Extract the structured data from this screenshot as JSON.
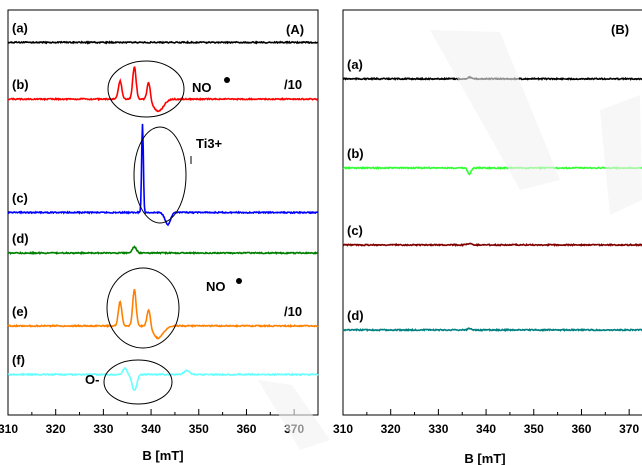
{
  "chart_data": [
    {
      "type": "line",
      "panel_label": "(A)",
      "xlabel": "B [mT]",
      "xlim": [
        310,
        375
      ],
      "xticks": [
        310,
        320,
        330,
        340,
        350,
        360,
        370
      ],
      "series": [
        {
          "name": "(a)",
          "color": "#000000",
          "baseline": 0.08,
          "annotation": "",
          "peaks": []
        },
        {
          "name": "(b)",
          "color": "#ff0000",
          "baseline": 0.22,
          "annotation": "/10",
          "peaks": [
            {
              "center": 333.5,
              "amp": 0.045,
              "width": 0.5
            },
            {
              "center": 336.5,
              "amp": 0.08,
              "width": 0.5
            },
            {
              "center": 339.5,
              "amp": 0.045,
              "width": 0.5
            },
            {
              "center": 341.5,
              "amp": -0.03,
              "width": 1.5
            }
          ]
        },
        {
          "name": "(c)",
          "color": "#0000ff",
          "baseline": 0.5,
          "annotation": "",
          "peaks": [
            {
              "center": 338.2,
              "amp": 0.22,
              "width": 0.25
            },
            {
              "center": 343.5,
              "amp": -0.03,
              "width": 0.8
            }
          ]
        },
        {
          "name": "(d)",
          "color": "#008000",
          "baseline": 0.6,
          "annotation": "",
          "peaks": [
            {
              "center": 336.5,
              "amp": 0.015,
              "width": 0.6
            }
          ]
        },
        {
          "name": "(e)",
          "color": "#ff8000",
          "baseline": 0.78,
          "annotation": "/10",
          "peaks": [
            {
              "center": 333.5,
              "amp": 0.06,
              "width": 0.5
            },
            {
              "center": 336.5,
              "amp": 0.09,
              "width": 0.5
            },
            {
              "center": 339.5,
              "amp": 0.045,
              "width": 0.5
            },
            {
              "center": 341.5,
              "amp": -0.03,
              "width": 1.5
            }
          ]
        },
        {
          "name": "(f)",
          "color": "#66ffff",
          "baseline": 0.9,
          "annotation": "",
          "peaks": [
            {
              "center": 334.5,
              "amp": 0.015,
              "width": 0.6
            },
            {
              "center": 336.5,
              "amp": -0.04,
              "width": 0.7
            },
            {
              "center": 347.5,
              "amp": 0.01,
              "width": 0.8
            }
          ]
        }
      ],
      "annotations": [
        "NO",
        "Ti3+",
        "NO",
        "O-"
      ]
    },
    {
      "type": "line",
      "panel_label": "(B)",
      "xlabel": "B [mT]",
      "xlim": [
        310,
        375
      ],
      "xticks": [
        310,
        320,
        330,
        340,
        350,
        360,
        370
      ],
      "series": [
        {
          "name": "(a)",
          "color": "#000000",
          "baseline": 0.17,
          "annotation": "",
          "peaks": [
            {
              "center": 336.5,
              "amp": 0.004,
              "width": 0.5
            }
          ]
        },
        {
          "name": "(b)",
          "color": "#33ff33",
          "baseline": 0.39,
          "annotation": "",
          "peaks": [
            {
              "center": 336.5,
              "amp": -0.015,
              "width": 0.5
            }
          ]
        },
        {
          "name": "(c)",
          "color": "#800000",
          "baseline": 0.58,
          "annotation": "",
          "peaks": [
            {
              "center": 336.5,
              "amp": 0.004,
              "width": 0.5
            }
          ]
        },
        {
          "name": "(d)",
          "color": "#008080",
          "baseline": 0.79,
          "annotation": "",
          "peaks": [
            {
              "center": 336.5,
              "amp": 0.004,
              "width": 0.5
            }
          ]
        }
      ],
      "annotations": []
    }
  ]
}
